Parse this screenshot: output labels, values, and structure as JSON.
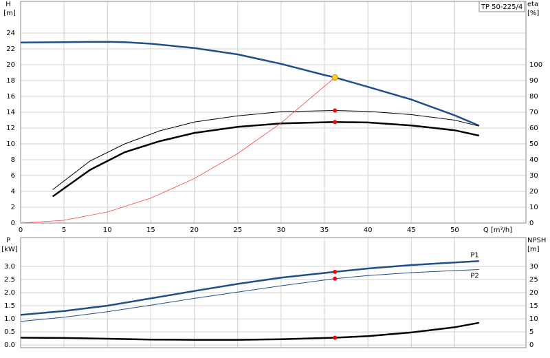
{
  "chart_data": [
    {
      "type": "line",
      "title": "TP 50-225/4",
      "ylabel": "H",
      "yunit": "[m]",
      "y2label": "eta",
      "y2unit": "[%]",
      "xlabel": "Q [m³/h]",
      "xlim": [
        0,
        58.2
      ],
      "xticks": [
        0,
        5,
        10,
        15,
        20,
        25,
        30,
        35,
        40,
        45,
        50
      ],
      "ylim": [
        0,
        28
      ],
      "yticks": [
        0,
        2,
        4,
        6,
        8,
        10,
        12,
        14,
        16,
        18,
        20,
        22,
        24
      ],
      "y2lim": [
        0,
        140
      ],
      "y2ticks": [
        0,
        10,
        20,
        30,
        40,
        50,
        60,
        70,
        80,
        90,
        100
      ],
      "grid": true,
      "series": [
        {
          "color": "#1f4e8c",
          "width": 2.5,
          "x": [
            0,
            5,
            10,
            12,
            15,
            20,
            25,
            30,
            35,
            36.2,
            40,
            45,
            50,
            52.8
          ],
          "values": [
            22.8,
            22.85,
            22.9,
            22.85,
            22.65,
            22.1,
            21.3,
            20.1,
            18.7,
            18.4,
            17.2,
            15.6,
            13.6,
            12.3
          ]
        },
        {
          "color": "#000000",
          "width": 1,
          "axis": "y2",
          "x": [
            3.7,
            8,
            12,
            16,
            20,
            25,
            30,
            36.2,
            40,
            45,
            50,
            52.8
          ],
          "values": [
            21.1,
            39.2,
            50,
            58.2,
            63.8,
            67.7,
            70.3,
            71.1,
            70.5,
            68.5,
            65,
            61.2
          ]
        },
        {
          "color": "#000000",
          "width": 2.5,
          "axis": "y2",
          "x": [
            3.7,
            8,
            12,
            16,
            20,
            25,
            30,
            36.2,
            40,
            45,
            50,
            52.8
          ],
          "values": [
            16.8,
            33.6,
            44.8,
            51.7,
            56.9,
            60.8,
            62.9,
            63.8,
            63.5,
            61.6,
            58.6,
            55.2
          ]
        },
        {
          "color": "#ff4040",
          "width": 0.8,
          "x": [
            0,
            5,
            10,
            15,
            20,
            25,
            30,
            36.2
          ],
          "values": [
            0,
            0.35,
            1.4,
            3.16,
            5.62,
            8.78,
            12.64,
            18.4
          ]
        }
      ],
      "points": [
        {
          "x": 36.2,
          "y": 18.4,
          "color": "#ffd21f"
        },
        {
          "x": 36.2,
          "y": 71.1,
          "axis": "y2",
          "color": "#ff0000"
        },
        {
          "x": 36.2,
          "y": 63.8,
          "axis": "y2",
          "color": "#ff0000"
        }
      ]
    },
    {
      "type": "line",
      "ylabel": "P",
      "yunit": "[kW]",
      "y2label": "NPSH",
      "y2unit": "[m]",
      "xlim": [
        0,
        58.2
      ],
      "ylim": [
        -0.1,
        4.1
      ],
      "yticks": [
        {
          "value": 0,
          "label": "0.0"
        },
        0.5,
        {
          "value": 1,
          "label": "1.0"
        },
        1.5,
        {
          "value": 2,
          "label": "2.0"
        },
        2.5,
        {
          "value": 3,
          "label": "3.0"
        }
      ],
      "y2lim": [
        -1,
        41
      ],
      "y2ticks": [
        0,
        5,
        10,
        15,
        20,
        25,
        30
      ],
      "grid": true,
      "series": [
        {
          "name": "P1",
          "color": "#1f4e8c",
          "width": 2.5,
          "x": [
            0,
            5,
            10,
            15,
            20,
            25,
            30,
            36.2,
            40,
            45,
            50,
            52.8
          ],
          "values": [
            1.15,
            1.3,
            1.5,
            1.78,
            2.06,
            2.33,
            2.57,
            2.79,
            2.92,
            3.05,
            3.15,
            3.2
          ]
        },
        {
          "name": "P2",
          "color": "#1f4e8c",
          "width": 1,
          "x": [
            0,
            5,
            10,
            15,
            20,
            25,
            30,
            36.2,
            40,
            45,
            50,
            52.8
          ],
          "values": [
            0.9,
            1.06,
            1.27,
            1.52,
            1.78,
            2.02,
            2.26,
            2.53,
            2.65,
            2.76,
            2.84,
            2.88
          ]
        },
        {
          "color": "#000000",
          "width": 2.5,
          "axis": "y2",
          "x": [
            0,
            5,
            10,
            15,
            20,
            25,
            30,
            36.2,
            40,
            45,
            50,
            52.8
          ],
          "values": [
            2.8,
            2.7,
            2.4,
            2.1,
            2.0,
            2.0,
            2.2,
            2.8,
            3.4,
            4.8,
            6.8,
            8.5
          ]
        }
      ],
      "points": [
        {
          "x": 36.2,
          "y": 2.79,
          "color": "#ff0000"
        },
        {
          "x": 36.2,
          "y": 2.53,
          "color": "#ff0000"
        },
        {
          "x": 36.2,
          "y": 2.8,
          "axis": "y2",
          "color": "#ff0000"
        }
      ]
    }
  ]
}
